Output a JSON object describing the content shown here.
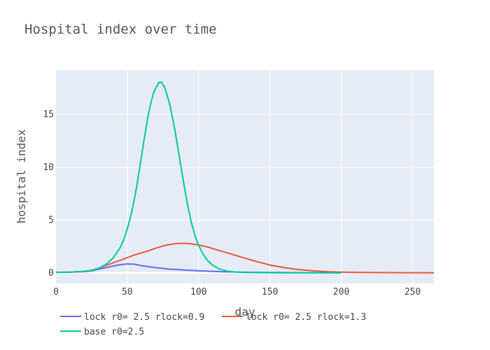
{
  "chart_data": {
    "type": "line",
    "title": "Hospital index over time",
    "xlabel": "day",
    "ylabel": "hospital index",
    "xlim": [
      0,
      265
    ],
    "ylim": [
      -1,
      19.2
    ],
    "x_ticks": [
      0,
      50,
      100,
      150,
      200,
      250
    ],
    "y_ticks": [
      0,
      5,
      10,
      15
    ],
    "grid": true,
    "legend_position": "bottom",
    "colors": {
      "plot_bg": "#e5ecf6",
      "grid": "#ffffff"
    },
    "series": [
      {
        "name": "lock r0= 2.5 rlock=0.9",
        "color": "#636efa",
        "x": [
          0,
          10,
          20,
          25,
          30,
          35,
          40,
          45,
          50,
          55,
          60,
          70,
          80,
          90,
          100,
          110,
          120,
          130,
          140,
          160,
          180,
          200
        ],
        "y": [
          0.05,
          0.07,
          0.12,
          0.2,
          0.35,
          0.5,
          0.65,
          0.78,
          0.85,
          0.83,
          0.68,
          0.5,
          0.35,
          0.27,
          0.2,
          0.14,
          0.1,
          0.07,
          0.05,
          0.03,
          0.02,
          0.01
        ]
      },
      {
        "name": "lock r0= 2.5 rlock=1.3",
        "color": "#ef553b",
        "x": [
          0,
          10,
          20,
          25,
          30,
          35,
          40,
          45,
          50,
          55,
          60,
          65,
          70,
          75,
          80,
          85,
          90,
          95,
          100,
          105,
          110,
          120,
          130,
          140,
          150,
          160,
          170,
          180,
          190,
          200,
          210,
          220,
          240,
          265
        ],
        "y": [
          0.05,
          0.08,
          0.15,
          0.25,
          0.45,
          0.7,
          0.95,
          1.2,
          1.45,
          1.7,
          1.9,
          2.1,
          2.35,
          2.55,
          2.7,
          2.78,
          2.8,
          2.75,
          2.65,
          2.5,
          2.3,
          1.9,
          1.5,
          1.1,
          0.75,
          0.5,
          0.32,
          0.2,
          0.12,
          0.07,
          0.04,
          0.03,
          0.02,
          0.01
        ]
      },
      {
        "name": "base r0=2.5",
        "color": "#00cc96",
        "x": [
          0,
          10,
          20,
          25,
          30,
          35,
          40,
          45,
          48,
          50,
          53,
          56,
          59,
          62,
          65,
          68,
          70,
          72,
          74,
          76,
          78,
          80,
          83,
          86,
          89,
          92,
          95,
          98,
          100,
          103,
          106,
          110,
          115,
          120,
          125,
          130,
          140,
          150,
          160,
          180,
          200
        ],
        "y": [
          0.05,
          0.08,
          0.15,
          0.25,
          0.45,
          0.8,
          1.4,
          2.4,
          3.3,
          4.2,
          5.7,
          7.7,
          10.2,
          12.8,
          15.2,
          16.9,
          17.5,
          18.0,
          18.05,
          17.6,
          16.8,
          15.8,
          13.8,
          11.4,
          8.9,
          6.6,
          4.7,
          3.3,
          2.6,
          1.8,
          1.2,
          0.7,
          0.35,
          0.17,
          0.09,
          0.05,
          0.03,
          0.02,
          0.01,
          0.01,
          0.01
        ]
      }
    ]
  }
}
